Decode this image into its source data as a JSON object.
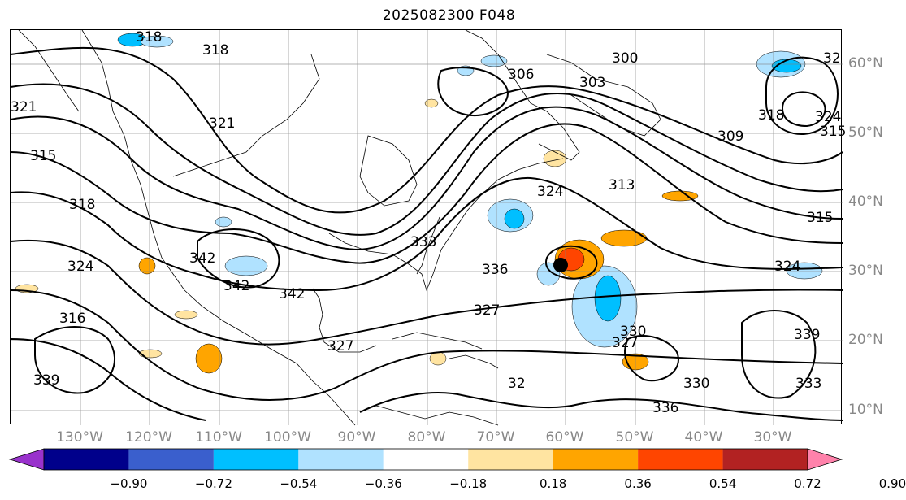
{
  "title": "2025082300 F048",
  "map": {
    "lon_labels": [
      "130°W",
      "120°W",
      "110°W",
      "100°W",
      "90°W",
      "80°W",
      "70°W",
      "60°W",
      "50°W",
      "40°W",
      "30°W"
    ],
    "lat_labels": [
      "60°N",
      "50°N",
      "40°N",
      "30°N",
      "20°N",
      "10°N"
    ],
    "contour_labels": [
      "318",
      "318",
      "321",
      "321",
      "315",
      "318",
      "324",
      "316",
      "339",
      "342",
      "342",
      "342",
      "336",
      "333",
      "327",
      "330",
      "327",
      "336",
      "330",
      "339",
      "333",
      "300",
      "303",
      "309",
      "313",
      "315",
      "324",
      "324",
      "306",
      "32",
      "324",
      "315",
      "318",
      "327",
      "32"
    ],
    "colors": {
      "land_outline": "#000000",
      "contour": "#000000",
      "grid": "#808080",
      "positive_anomaly": "#ffa500",
      "negative_anomaly": "#87ceeb"
    }
  },
  "colorbar": {
    "colors": [
      "#9932cc",
      "#00008b",
      "#3a5fcd",
      "#00bfff",
      "#b0e2ff",
      "#ffffff",
      "#ffe4a1",
      "#ffa500",
      "#ff4500",
      "#b22222",
      "#ff82ab"
    ],
    "tick_labels": [
      "−0.90",
      "−0.72",
      "−0.54",
      "−0.36",
      "−0.18",
      "0.18",
      "0.36",
      "0.54",
      "0.72",
      "0.90"
    ]
  }
}
